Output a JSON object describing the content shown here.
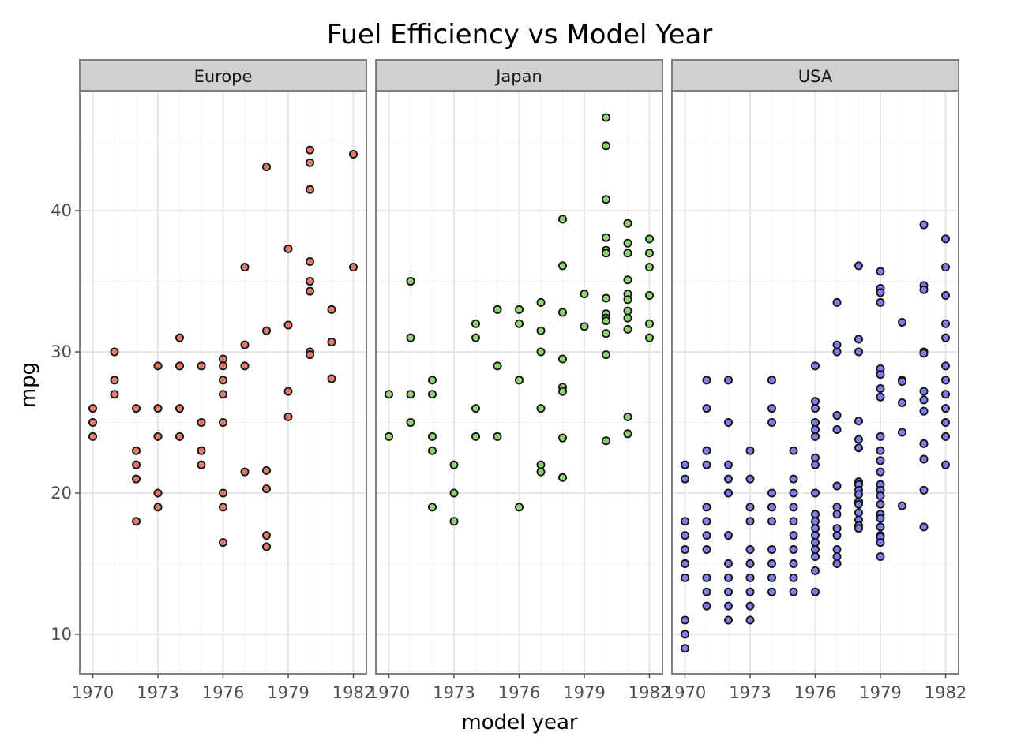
{
  "chart_data": {
    "type": "scatter",
    "title": "Fuel Efficiency vs Model Year",
    "xlabel": "model year",
    "ylabel": "mpg",
    "x_ticks": [
      1970,
      1973,
      1976,
      1979,
      1982
    ],
    "y_ticks": [
      10,
      20,
      30,
      40
    ],
    "xlim": [
      1969.4,
      1982.6
    ],
    "ylim": [
      7.2,
      48.5
    ],
    "grid": true,
    "facets": [
      {
        "label": "Europe",
        "color": "#e07b6a",
        "points": [
          [
            1970,
            26
          ],
          [
            1970,
            25
          ],
          [
            1970,
            24
          ],
          [
            1971,
            30
          ],
          [
            1971,
            28
          ],
          [
            1971,
            27
          ],
          [
            1972,
            26
          ],
          [
            1972,
            23
          ],
          [
            1972,
            22
          ],
          [
            1972,
            21
          ],
          [
            1972,
            18
          ],
          [
            1973,
            29
          ],
          [
            1973,
            26
          ],
          [
            1973,
            24
          ],
          [
            1973,
            20
          ],
          [
            1973,
            19
          ],
          [
            1974,
            31
          ],
          [
            1974,
            29
          ],
          [
            1974,
            26
          ],
          [
            1974,
            24
          ],
          [
            1975,
            29
          ],
          [
            1975,
            25
          ],
          [
            1975,
            23
          ],
          [
            1975,
            22
          ],
          [
            1976,
            29.5
          ],
          [
            1976,
            29
          ],
          [
            1976,
            28
          ],
          [
            1976,
            27
          ],
          [
            1976,
            25
          ],
          [
            1976,
            20
          ],
          [
            1976,
            19
          ],
          [
            1976,
            16.5
          ],
          [
            1977,
            36
          ],
          [
            1977,
            30.5
          ],
          [
            1977,
            29
          ],
          [
            1977,
            21.5
          ],
          [
            1978,
            43.1
          ],
          [
            1978,
            31.5
          ],
          [
            1978,
            21.6
          ],
          [
            1978,
            20.3
          ],
          [
            1978,
            17
          ],
          [
            1978,
            16.2
          ],
          [
            1979,
            37.3
          ],
          [
            1979,
            31.9
          ],
          [
            1979,
            27.2
          ],
          [
            1979,
            25.4
          ],
          [
            1980,
            44.3
          ],
          [
            1980,
            43.4
          ],
          [
            1980,
            41.5
          ],
          [
            1980,
            36.4
          ],
          [
            1980,
            35
          ],
          [
            1980,
            34.3
          ],
          [
            1980,
            30
          ],
          [
            1980,
            29.8
          ],
          [
            1981,
            33
          ],
          [
            1981,
            30.7
          ],
          [
            1981,
            28.1
          ],
          [
            1982,
            44
          ],
          [
            1982,
            36
          ]
        ]
      },
      {
        "label": "Japan",
        "color": "#8ed16f",
        "points": [
          [
            1970,
            27
          ],
          [
            1970,
            24
          ],
          [
            1971,
            35
          ],
          [
            1971,
            31
          ],
          [
            1971,
            27
          ],
          [
            1971,
            25
          ],
          [
            1972,
            28
          ],
          [
            1972,
            27
          ],
          [
            1972,
            24
          ],
          [
            1972,
            23
          ],
          [
            1972,
            19
          ],
          [
            1973,
            22
          ],
          [
            1973,
            20
          ],
          [
            1973,
            18
          ],
          [
            1974,
            32
          ],
          [
            1974,
            31
          ],
          [
            1974,
            26
          ],
          [
            1974,
            24
          ],
          [
            1975,
            33
          ],
          [
            1975,
            29
          ],
          [
            1975,
            24
          ],
          [
            1976,
            33
          ],
          [
            1976,
            32
          ],
          [
            1976,
            28
          ],
          [
            1976,
            19
          ],
          [
            1977,
            33.5
          ],
          [
            1977,
            31.5
          ],
          [
            1977,
            30
          ],
          [
            1977,
            26
          ],
          [
            1977,
            22
          ],
          [
            1977,
            21.5
          ],
          [
            1978,
            39.4
          ],
          [
            1978,
            36.1
          ],
          [
            1978,
            32.8
          ],
          [
            1978,
            29.5
          ],
          [
            1978,
            27.5
          ],
          [
            1978,
            27.2
          ],
          [
            1978,
            23.9
          ],
          [
            1978,
            21.1
          ],
          [
            1979,
            34.1
          ],
          [
            1979,
            31.8
          ],
          [
            1980,
            46.6
          ],
          [
            1980,
            44.6
          ],
          [
            1980,
            40.8
          ],
          [
            1980,
            38.1
          ],
          [
            1980,
            37.2
          ],
          [
            1980,
            37
          ],
          [
            1980,
            33.8
          ],
          [
            1980,
            32.7
          ],
          [
            1980,
            32.4
          ],
          [
            1980,
            32.2
          ],
          [
            1980,
            31.3
          ],
          [
            1980,
            29.8
          ],
          [
            1980,
            23.7
          ],
          [
            1981,
            39.1
          ],
          [
            1981,
            37.7
          ],
          [
            1981,
            37
          ],
          [
            1981,
            35.1
          ],
          [
            1981,
            34.1
          ],
          [
            1981,
            33.7
          ],
          [
            1981,
            32.9
          ],
          [
            1981,
            32.4
          ],
          [
            1981,
            31.6
          ],
          [
            1981,
            25.4
          ],
          [
            1981,
            24.2
          ],
          [
            1982,
            38
          ],
          [
            1982,
            37
          ],
          [
            1982,
            36
          ],
          [
            1982,
            34
          ],
          [
            1982,
            32
          ],
          [
            1982,
            31
          ]
        ]
      },
      {
        "label": "USA",
        "color": "#7d7ee8",
        "points": [
          [
            1970,
            22
          ],
          [
            1970,
            21
          ],
          [
            1970,
            18
          ],
          [
            1970,
            17
          ],
          [
            1970,
            16
          ],
          [
            1970,
            15
          ],
          [
            1970,
            14
          ],
          [
            1970,
            11
          ],
          [
            1970,
            10
          ],
          [
            1970,
            9
          ],
          [
            1971,
            28
          ],
          [
            1971,
            26
          ],
          [
            1971,
            23
          ],
          [
            1971,
            22
          ],
          [
            1971,
            19
          ],
          [
            1971,
            18
          ],
          [
            1971,
            17
          ],
          [
            1971,
            16
          ],
          [
            1971,
            14
          ],
          [
            1971,
            13
          ],
          [
            1971,
            12
          ],
          [
            1972,
            28
          ],
          [
            1972,
            25
          ],
          [
            1972,
            22
          ],
          [
            1972,
            21
          ],
          [
            1972,
            20
          ],
          [
            1972,
            17
          ],
          [
            1972,
            15
          ],
          [
            1972,
            14
          ],
          [
            1972,
            13
          ],
          [
            1972,
            12
          ],
          [
            1972,
            11
          ],
          [
            1973,
            23
          ],
          [
            1973,
            21
          ],
          [
            1973,
            19
          ],
          [
            1973,
            18
          ],
          [
            1973,
            16
          ],
          [
            1973,
            15
          ],
          [
            1973,
            14
          ],
          [
            1973,
            13
          ],
          [
            1973,
            12
          ],
          [
            1973,
            11
          ],
          [
            1974,
            28
          ],
          [
            1974,
            26
          ],
          [
            1974,
            25
          ],
          [
            1974,
            20
          ],
          [
            1974,
            19
          ],
          [
            1974,
            18
          ],
          [
            1974,
            16
          ],
          [
            1974,
            15
          ],
          [
            1974,
            14
          ],
          [
            1974,
            13
          ],
          [
            1975,
            23
          ],
          [
            1975,
            21
          ],
          [
            1975,
            20
          ],
          [
            1975,
            19
          ],
          [
            1975,
            18
          ],
          [
            1975,
            17
          ],
          [
            1975,
            16
          ],
          [
            1975,
            15
          ],
          [
            1975,
            14
          ],
          [
            1975,
            13
          ],
          [
            1976,
            29
          ],
          [
            1976,
            26.5
          ],
          [
            1976,
            26
          ],
          [
            1976,
            25
          ],
          [
            1976,
            24.5
          ],
          [
            1976,
            24
          ],
          [
            1976,
            22.5
          ],
          [
            1976,
            22
          ],
          [
            1976,
            20
          ],
          [
            1976,
            18.5
          ],
          [
            1976,
            18
          ],
          [
            1976,
            17.5
          ],
          [
            1976,
            17
          ],
          [
            1976,
            16.5
          ],
          [
            1976,
            16
          ],
          [
            1976,
            15.5
          ],
          [
            1976,
            14.5
          ],
          [
            1976,
            13
          ],
          [
            1977,
            33.5
          ],
          [
            1977,
            30.5
          ],
          [
            1977,
            30
          ],
          [
            1977,
            25.5
          ],
          [
            1977,
            24.5
          ],
          [
            1977,
            20.5
          ],
          [
            1977,
            19
          ],
          [
            1977,
            18.5
          ],
          [
            1977,
            17.5
          ],
          [
            1977,
            17
          ],
          [
            1977,
            16
          ],
          [
            1977,
            15.5
          ],
          [
            1977,
            15
          ],
          [
            1978,
            36.1
          ],
          [
            1978,
            30.9
          ],
          [
            1978,
            30
          ],
          [
            1978,
            25.1
          ],
          [
            1978,
            23.8
          ],
          [
            1978,
            23.2
          ],
          [
            1978,
            20.8
          ],
          [
            1978,
            20.6
          ],
          [
            1978,
            20.2
          ],
          [
            1978,
            19.9
          ],
          [
            1978,
            19.4
          ],
          [
            1978,
            19.2
          ],
          [
            1978,
            18.6
          ],
          [
            1978,
            18.1
          ],
          [
            1978,
            17.7
          ],
          [
            1978,
            17.5
          ],
          [
            1979,
            35.7
          ],
          [
            1979,
            34.5
          ],
          [
            1979,
            34.2
          ],
          [
            1979,
            33.5
          ],
          [
            1979,
            28.8
          ],
          [
            1979,
            28.4
          ],
          [
            1979,
            27.4
          ],
          [
            1979,
            26.8
          ],
          [
            1979,
            24
          ],
          [
            1979,
            23
          ],
          [
            1979,
            22.3
          ],
          [
            1979,
            21.5
          ],
          [
            1979,
            20.6
          ],
          [
            1979,
            20.2
          ],
          [
            1979,
            19.8
          ],
          [
            1979,
            19.2
          ],
          [
            1979,
            18.5
          ],
          [
            1979,
            18.2
          ],
          [
            1979,
            17.6
          ],
          [
            1979,
            17
          ],
          [
            1979,
            16.9
          ],
          [
            1979,
            16.5
          ],
          [
            1979,
            15.5
          ],
          [
            1980,
            32.1
          ],
          [
            1980,
            28
          ],
          [
            1980,
            27.9
          ],
          [
            1980,
            26.4
          ],
          [
            1980,
            24.3
          ],
          [
            1980,
            19.1
          ],
          [
            1981,
            39
          ],
          [
            1981,
            34.7
          ],
          [
            1981,
            34.4
          ],
          [
            1981,
            30
          ],
          [
            1981,
            29.9
          ],
          [
            1981,
            27.2
          ],
          [
            1981,
            26.6
          ],
          [
            1981,
            25.8
          ],
          [
            1981,
            23.5
          ],
          [
            1981,
            22.4
          ],
          [
            1981,
            20.2
          ],
          [
            1981,
            17.6
          ],
          [
            1982,
            38
          ],
          [
            1982,
            36
          ],
          [
            1982,
            34
          ],
          [
            1982,
            32
          ],
          [
            1982,
            31
          ],
          [
            1982,
            29
          ],
          [
            1982,
            28
          ],
          [
            1982,
            27
          ],
          [
            1982,
            26
          ],
          [
            1982,
            25
          ],
          [
            1982,
            24
          ],
          [
            1982,
            22
          ]
        ]
      }
    ]
  }
}
